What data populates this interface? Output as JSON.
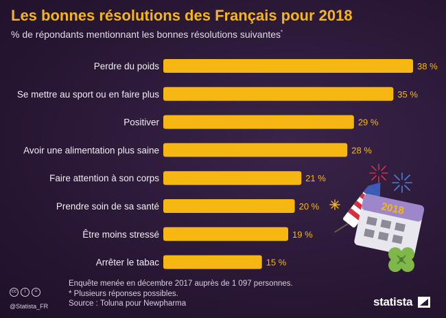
{
  "header": {
    "title": "Les bonnes résolutions des Français pour 2018",
    "subtitle": "% de répondants mentionnant les bonnes résolutions suivantes",
    "subtitle_mark": "*"
  },
  "chart_data": {
    "type": "bar",
    "orientation": "horizontal",
    "categories": [
      "Perdre du poids",
      "Se mettre au sport ou en faire plus",
      "Positiver",
      "Avoir une alimentation plus saine",
      "Faire attention à son corps",
      "Prendre soin de sa santé",
      "Être moins stressé",
      "Arrêter le tabac"
    ],
    "values": [
      38,
      35,
      29,
      28,
      21,
      20,
      19,
      15
    ],
    "value_labels": [
      "38 %",
      "35 %",
      "29 %",
      "28 %",
      "21 %",
      "20 %",
      "19 %",
      "15 %"
    ],
    "xlim": [
      0,
      40
    ],
    "bar_color": "#f6b713",
    "grid": false
  },
  "illustration": {
    "calendar_year": "2018"
  },
  "footer": {
    "note1": "Enquête menée en décembre 2017 auprès de 1 097 personnes.",
    "note2": "* Plusieurs réponses possibles.",
    "source": "Source : Toluna pour Newpharma",
    "handle": "@Statista_FR",
    "brand": "statista"
  },
  "colors": {
    "background": "#2a1836",
    "accent": "#f6b713",
    "text": "#ffffff"
  }
}
